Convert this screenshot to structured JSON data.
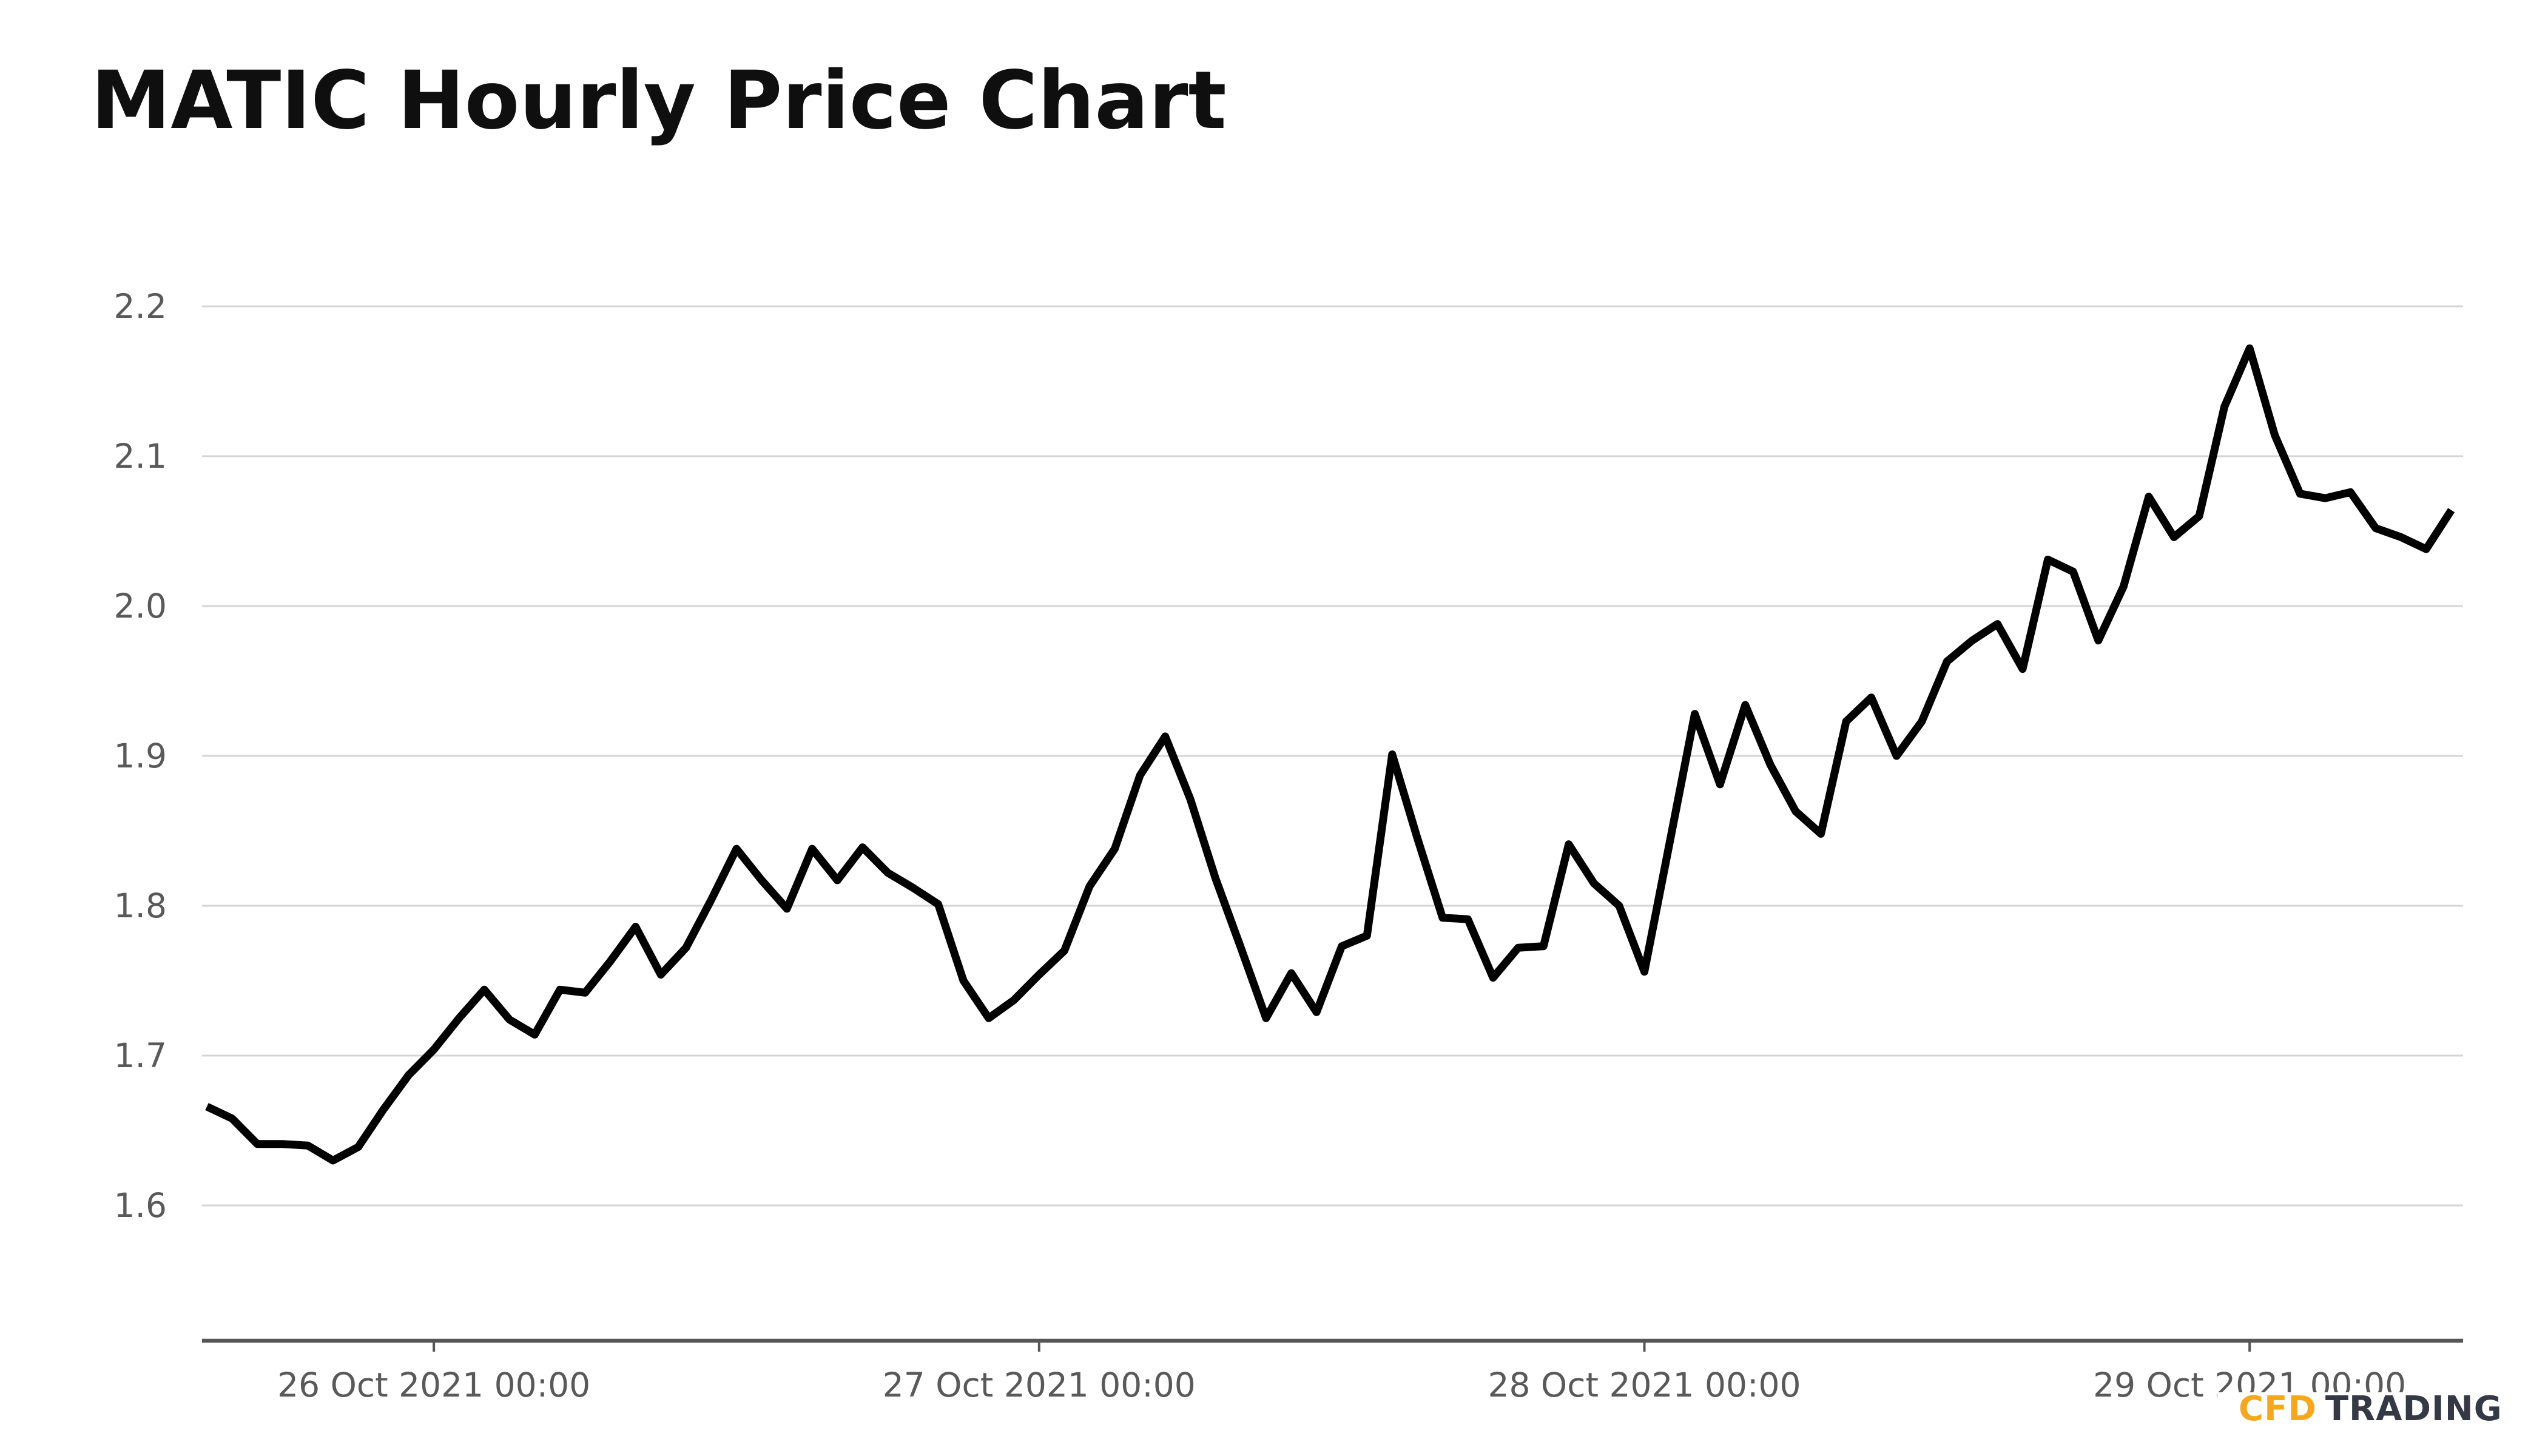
{
  "page": {
    "title": "MATIC Hourly Price Chart",
    "background_color": "#ffffff"
  },
  "logo": {
    "part1": "CFD",
    "part2": "TRADING",
    "part1_color": "#f5a81e",
    "part2_color": "#343945"
  },
  "chart_data": {
    "type": "line",
    "title": "MATIC Hourly Price Chart",
    "xlabel": "",
    "ylabel": "",
    "grid": "horizontal",
    "legend": "none",
    "line_color": "#000000",
    "gridline_color": "#d5d5d5",
    "axis_color": "#565656",
    "tick_label_color": "#595959",
    "x_start": "2021-10-25 15:00",
    "x_interval_hours": 1,
    "ylim": [
      1.51,
      2.225
    ],
    "yticks": [
      2.2,
      2.1,
      2.0,
      1.9,
      1.8,
      1.7,
      1.6
    ],
    "ytick_labels": [
      "2.2",
      "2.1",
      "2.0",
      "1.9",
      "1.8",
      "1.7",
      "1.6"
    ],
    "xtick_hours": [
      9,
      33,
      57,
      81
    ],
    "xtick_labels": [
      "26 Oct 2021 00:00",
      "27 Oct 2021 00:00",
      "28 Oct 2021 00:00",
      "29 Oct 2021 00:00"
    ],
    "values": [
      1.666,
      1.658,
      1.641,
      1.641,
      1.64,
      1.63,
      1.639,
      1.664,
      1.687,
      1.704,
      1.725,
      1.744,
      1.724,
      1.714,
      1.744,
      1.742,
      1.763,
      1.786,
      1.754,
      1.772,
      1.804,
      1.838,
      1.817,
      1.798,
      1.838,
      1.817,
      1.839,
      1.822,
      1.812,
      1.801,
      1.75,
      1.725,
      1.737,
      1.754,
      1.77,
      1.813,
      1.838,
      1.887,
      1.913,
      1.871,
      1.818,
      1.772,
      1.725,
      1.755,
      1.729,
      1.773,
      1.78,
      1.901,
      1.845,
      1.792,
      1.791,
      1.752,
      1.772,
      1.773,
      1.841,
      1.815,
      1.8,
      1.756,
      1.842,
      1.928,
      1.881,
      1.934,
      1.894,
      1.863,
      1.848,
      1.923,
      1.939,
      1.9,
      1.923,
      1.963,
      1.977,
      1.988,
      1.958,
      2.031,
      2.023,
      1.977,
      2.013,
      2.073,
      2.046,
      2.06,
      2.133,
      2.172,
      2.114,
      2.075,
      2.072,
      2.076,
      2.052,
      2.046,
      2.038,
      2.064
    ]
  }
}
